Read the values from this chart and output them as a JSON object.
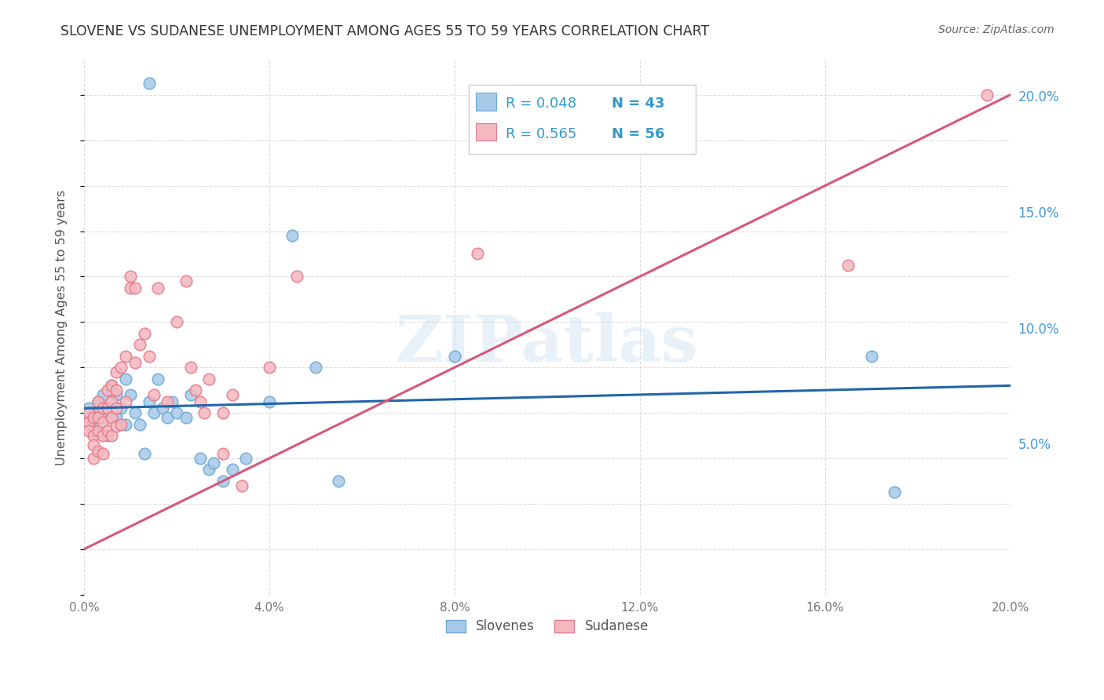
{
  "title": "SLOVENE VS SUDANESE UNEMPLOYMENT AMONG AGES 55 TO 59 YEARS CORRELATION CHART",
  "source": "Source: ZipAtlas.com",
  "ylabel": "Unemployment Among Ages 55 to 59 years",
  "xlim": [
    0.0,
    0.2
  ],
  "ylim": [
    -0.015,
    0.215
  ],
  "yticks_right": [
    0.05,
    0.1,
    0.15,
    0.2
  ],
  "ytick_right_labels": [
    "5.0%",
    "10.0%",
    "15.0%",
    "20.0%"
  ],
  "xtick_positions": [
    0.0,
    0.04,
    0.08,
    0.12,
    0.16,
    0.2
  ],
  "xtick_labels": [
    "0.0%",
    "4.0%",
    "8.0%",
    "12.0%",
    "16.0%",
    "20.0%"
  ],
  "blue_color": "#a8c8e8",
  "blue_edge_color": "#6aaad4",
  "pink_color": "#f4b8c0",
  "pink_edge_color": "#e87a8a",
  "blue_line_color": "#2166ac",
  "pink_line_color": "#d6587a",
  "legend_r_color": "#3399cc",
  "legend_n_color": "#3399cc",
  "legend_label_blue": "Slovenes",
  "legend_label_pink": "Sudanese",
  "title_color": "#333333",
  "source_color": "#666666",
  "right_tick_color": "#4499dd",
  "axis_label_color": "#555555",
  "background_color": "#ffffff",
  "grid_color": "#dddddd",
  "watermark_text": "ZIPatlas",
  "blue_R": 0.048,
  "blue_N": 43,
  "pink_R": 0.565,
  "pink_N": 56,
  "blue_line_x0": 0.0,
  "blue_line_y0": 0.062,
  "blue_line_x1": 0.2,
  "blue_line_y1": 0.072,
  "pink_line_x0": 0.0,
  "pink_line_y0": 0.0,
  "pink_line_x1": 0.2,
  "pink_line_y1": 0.2,
  "blue_x": [
    0.014,
    0.001,
    0.001,
    0.002,
    0.002,
    0.003,
    0.003,
    0.004,
    0.004,
    0.005,
    0.005,
    0.006,
    0.007,
    0.007,
    0.008,
    0.009,
    0.009,
    0.01,
    0.011,
    0.012,
    0.013,
    0.014,
    0.015,
    0.016,
    0.017,
    0.018,
    0.019,
    0.02,
    0.022,
    0.023,
    0.025,
    0.027,
    0.028,
    0.03,
    0.032,
    0.035,
    0.04,
    0.045,
    0.05,
    0.055,
    0.08,
    0.17,
    0.175
  ],
  "blue_y": [
    0.205,
    0.062,
    0.058,
    0.055,
    0.052,
    0.06,
    0.065,
    0.058,
    0.068,
    0.062,
    0.05,
    0.072,
    0.068,
    0.058,
    0.062,
    0.075,
    0.055,
    0.068,
    0.06,
    0.055,
    0.042,
    0.065,
    0.06,
    0.075,
    0.062,
    0.058,
    0.065,
    0.06,
    0.058,
    0.068,
    0.04,
    0.035,
    0.038,
    0.03,
    0.035,
    0.04,
    0.065,
    0.138,
    0.08,
    0.03,
    0.085,
    0.085,
    0.025
  ],
  "pink_x": [
    0.001,
    0.001,
    0.001,
    0.002,
    0.002,
    0.002,
    0.002,
    0.003,
    0.003,
    0.003,
    0.003,
    0.004,
    0.004,
    0.004,
    0.004,
    0.005,
    0.005,
    0.005,
    0.006,
    0.006,
    0.006,
    0.006,
    0.007,
    0.007,
    0.007,
    0.007,
    0.008,
    0.008,
    0.009,
    0.009,
    0.01,
    0.01,
    0.011,
    0.011,
    0.012,
    0.013,
    0.014,
    0.015,
    0.016,
    0.018,
    0.02,
    0.022,
    0.023,
    0.024,
    0.025,
    0.026,
    0.027,
    0.03,
    0.03,
    0.032,
    0.034,
    0.04,
    0.046,
    0.085,
    0.165,
    0.195
  ],
  "pink_y": [
    0.06,
    0.056,
    0.052,
    0.058,
    0.05,
    0.046,
    0.04,
    0.065,
    0.058,
    0.052,
    0.043,
    0.062,
    0.056,
    0.05,
    0.042,
    0.07,
    0.062,
    0.052,
    0.072,
    0.065,
    0.058,
    0.05,
    0.078,
    0.07,
    0.062,
    0.054,
    0.08,
    0.055,
    0.085,
    0.065,
    0.115,
    0.12,
    0.082,
    0.115,
    0.09,
    0.095,
    0.085,
    0.068,
    0.115,
    0.065,
    0.1,
    0.118,
    0.08,
    0.07,
    0.065,
    0.06,
    0.075,
    0.042,
    0.06,
    0.068,
    0.028,
    0.08,
    0.12,
    0.13,
    0.125,
    0.2
  ]
}
